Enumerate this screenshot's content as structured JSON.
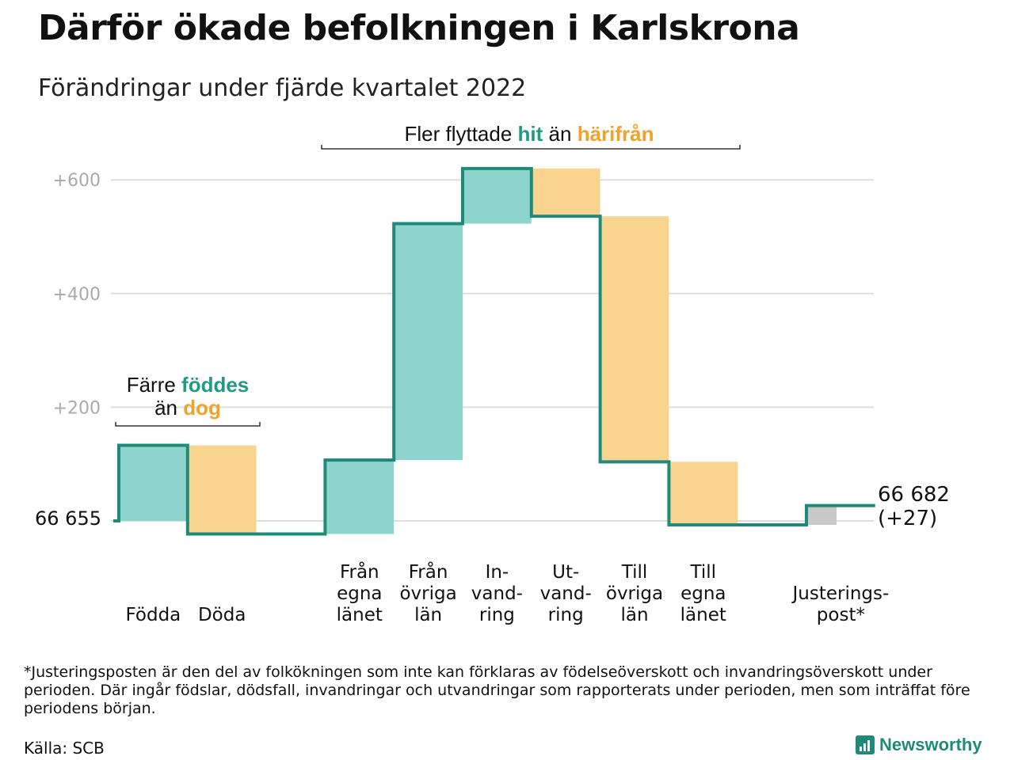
{
  "header": {
    "title": "Därför ökade befolkningen i Karlskrona",
    "subtitle": "Förändringar under fjärde kvartalet 2022"
  },
  "annotations": {
    "migration": {
      "prefix": "Fler flyttade ",
      "hit": "hit",
      "mid": " än ",
      "harifran": "härifrån"
    },
    "natural": {
      "line1_prefix": "Färre ",
      "line1_hl": "föddes",
      "line2_prefix": "än ",
      "line2_hl": "dog"
    }
  },
  "colors": {
    "increase": "#8dd4cc",
    "decrease": "#f9d48f",
    "adjustment": "#c8c8c8",
    "line": "#1f8a7a",
    "teal_text": "#1f9a84",
    "orange_text": "#f0a22a",
    "grid": "#dddddd",
    "tick_text": "#aaaaaa"
  },
  "chart_data": {
    "type": "waterfall",
    "start_value": "66 655",
    "end_value": "66 682",
    "end_change": "(+27)",
    "y_ticks": [
      "+200",
      "+400",
      "+600"
    ],
    "ylim": [
      -30,
      630
    ],
    "steps": [
      {
        "label": [
          "Födda"
        ],
        "value": 133,
        "kind": "increase"
      },
      {
        "label": [
          "Döda"
        ],
        "value": -156,
        "kind": "decrease"
      },
      {
        "label": [],
        "value": 0,
        "kind": "gap"
      },
      {
        "label": [
          "Från",
          "egna",
          "länet"
        ],
        "value": 130,
        "kind": "increase"
      },
      {
        "label": [
          "Från",
          "övriga",
          "län"
        ],
        "value": 416,
        "kind": "increase"
      },
      {
        "label": [
          "In-",
          "vand-",
          "ring"
        ],
        "value": 97,
        "kind": "increase"
      },
      {
        "label": [
          "Ut-",
          "vand-",
          "ring"
        ],
        "value": -84,
        "kind": "decrease"
      },
      {
        "label": [
          "Till",
          "övriga",
          "län"
        ],
        "value": -432,
        "kind": "decrease"
      },
      {
        "label": [
          "Till",
          "egna",
          "länet"
        ],
        "value": -111,
        "kind": "decrease"
      },
      {
        "label": [],
        "value": 0,
        "kind": "gap"
      },
      {
        "label": [
          "Justerings-",
          "post*"
        ],
        "value": 34,
        "kind": "adjustment"
      }
    ]
  },
  "footer": {
    "footnote": "*Justeringsposten är den del av folkökningen som inte kan förklaras av födelseöverskott och invandringsöverskott under perioden. Där ingår födslar, dödsfall, invandringar och utvandringar som rapporterats under perioden, men som inträffat före periodens början.",
    "source": "Källa: SCB",
    "brand": "Newsworthy"
  }
}
